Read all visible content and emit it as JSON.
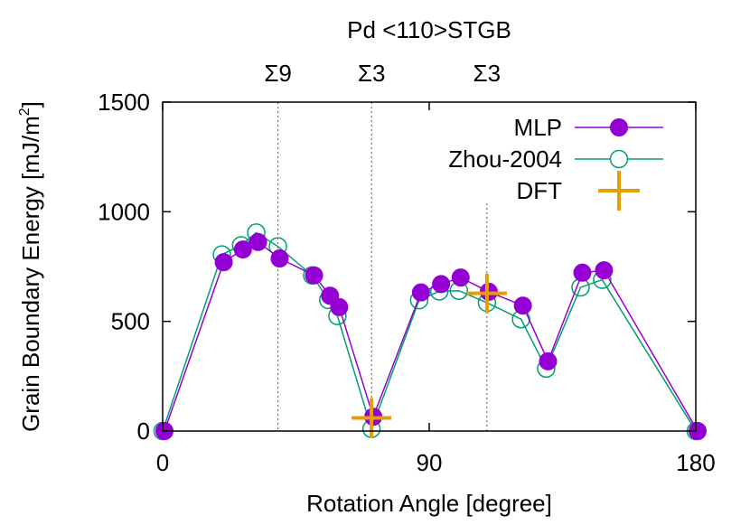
{
  "chart_data": {
    "type": "line",
    "title": "Pd <110>STGB",
    "xlabel": "Rotation Angle [degree]",
    "ylabel_main": "Grain Boundary Energy [mJ/m",
    "ylabel_sup": "2",
    "ylabel_close": "]",
    "xlim": [
      0,
      180
    ],
    "ylim": [
      0,
      1500
    ],
    "xticks": [
      0,
      90,
      180
    ],
    "yticks": [
      0,
      500,
      1000,
      1500
    ],
    "grid": false,
    "legend_position": "top-right",
    "annotations": [
      {
        "label": "Σ9",
        "x": 38.94
      },
      {
        "label": "Σ3",
        "x": 70.53
      },
      {
        "label": "Σ3",
        "x": 109.47
      }
    ],
    "series": [
      {
        "name": "MLP",
        "color": "#9400d3",
        "marker": "filled-circle",
        "x": [
          0,
          20,
          26.5,
          31.6,
          38.9,
          50.5,
          55.9,
          59.0,
          70.5,
          86.6,
          93.4,
          100.0,
          109.5,
          121.0,
          129.5,
          141.1,
          148.4,
          180
        ],
        "y": [
          0,
          770,
          828,
          862,
          787,
          710,
          617,
          565,
          65,
          632,
          670,
          700,
          635,
          572,
          318,
          722,
          733,
          0
        ]
      },
      {
        "name": "Zhou-2004",
        "color": "#009e73",
        "marker": "open-circle",
        "x": [
          0,
          20,
          26.5,
          31.6,
          38.9,
          50.5,
          55.9,
          59.0,
          70.5,
          86.6,
          93.4,
          100.0,
          109.5,
          121.0,
          129.5,
          141.1,
          148.4,
          180
        ],
        "y": [
          0,
          805,
          847,
          905,
          842,
          710,
          598,
          525,
          10,
          597,
          637,
          640,
          585,
          510,
          285,
          655,
          690,
          0
        ]
      },
      {
        "name": "DFT",
        "color": "#e69f00",
        "marker": "plus",
        "x": [
          70.5,
          109.5
        ],
        "y": [
          60,
          628
        ]
      }
    ]
  }
}
